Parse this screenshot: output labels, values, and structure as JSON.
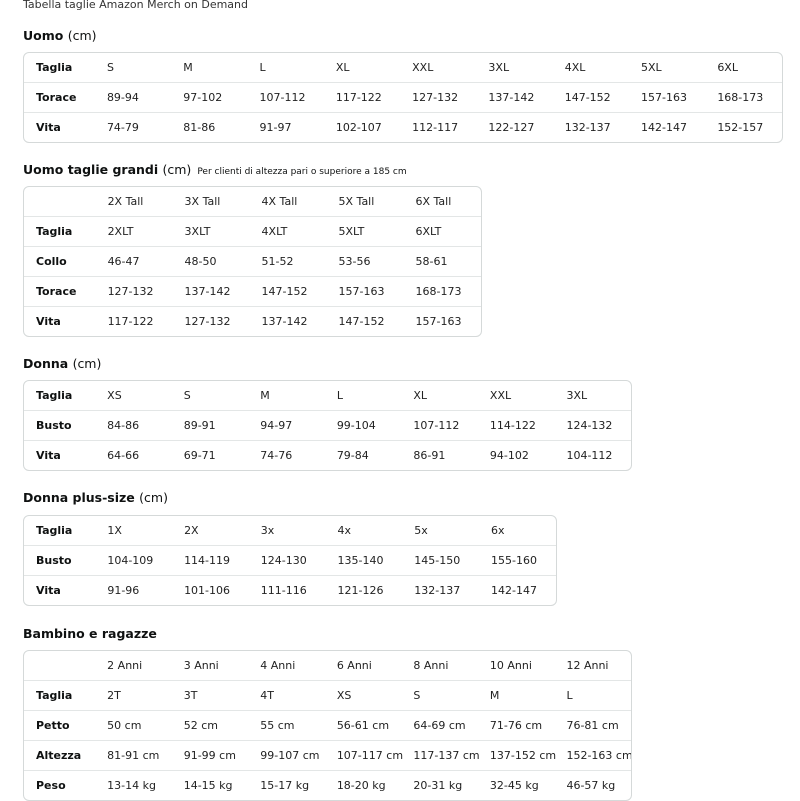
{
  "title": "Tabella taglie Amazon Merch on Demand",
  "sections": [
    {
      "heading": "Uomo",
      "unit": "(cm)",
      "note": "",
      "rows": [
        [
          "Taglia",
          "S",
          "M",
          "L",
          "XL",
          "XXL",
          "3XL",
          "4XL",
          "5XL",
          "6XL"
        ],
        [
          "Torace",
          "89-94",
          "97-102",
          "107-112",
          "117-122",
          "127-132",
          "137-142",
          "147-152",
          "157-163",
          "168-173"
        ],
        [
          "Vita",
          "74-79",
          "81-86",
          "91-97",
          "102-107",
          "112-117",
          "122-127",
          "132-137",
          "142-147",
          "152-157"
        ]
      ]
    },
    {
      "heading": "Uomo taglie grandi",
      "unit": "(cm)",
      "note": "Per clienti di altezza pari o superiore a 185 cm",
      "rows": [
        [
          "",
          "2X Tall",
          "3X Tall",
          "4X Tall",
          "5X Tall",
          "6X Tall"
        ],
        [
          "Taglia",
          "2XLT",
          "3XLT",
          "4XLT",
          "5XLT",
          "6XLT"
        ],
        [
          "Collo",
          "46-47",
          "48-50",
          "51-52",
          "53-56",
          "58-61"
        ],
        [
          "Torace",
          "127-132",
          "137-142",
          "147-152",
          "157-163",
          "168-173"
        ],
        [
          "Vita",
          "117-122",
          "127-132",
          "137-142",
          "147-152",
          "157-163"
        ]
      ]
    },
    {
      "heading": "Donna",
      "unit": "(cm)",
      "note": "",
      "rows": [
        [
          "Taglia",
          "XS",
          "S",
          "M",
          "L",
          "XL",
          "XXL",
          "3XL"
        ],
        [
          "Busto",
          "84-86",
          "89-91",
          "94-97",
          "99-104",
          "107-112",
          "114-122",
          "124-132"
        ],
        [
          "Vita",
          "64-66",
          "69-71",
          "74-76",
          "79-84",
          "86-91",
          "94-102",
          "104-112"
        ]
      ]
    },
    {
      "heading": "Donna plus-size",
      "unit": "(cm)",
      "note": "",
      "rows": [
        [
          "Taglia",
          "1X",
          "2X",
          "3x",
          "4x",
          "5x",
          "6x"
        ],
        [
          "Busto",
          "104-109",
          "114-119",
          "124-130",
          "135-140",
          "145-150",
          "155-160"
        ],
        [
          "Vita",
          "91-96",
          "101-106",
          "111-116",
          "121-126",
          "132-137",
          "142-147"
        ]
      ]
    },
    {
      "heading": "Bambino e ragazze",
      "unit": "",
      "note": "",
      "rows": [
        [
          "",
          "2 Anni",
          "3 Anni",
          "4 Anni",
          "6 Anni",
          "8 Anni",
          "10 Anni",
          "12 Anni"
        ],
        [
          "Taglia",
          "2T",
          "3T",
          "4T",
          "XS",
          "S",
          "M",
          "L"
        ],
        [
          "Petto",
          "50 cm",
          "52 cm",
          "55 cm",
          "56-61 cm",
          "64-69 cm",
          "71-76 cm",
          "76-81 cm"
        ],
        [
          "Altezza",
          "81-91 cm",
          "91-99 cm",
          "99-107 cm",
          "107-117 cm",
          "117-137 cm",
          "137-152 cm",
          "152-163 cm"
        ],
        [
          "Peso",
          "13-14 kg",
          "14-15 kg",
          "15-17 kg",
          "18-20 kg",
          "20-31 kg",
          "32-45 kg",
          "46-57 kg"
        ]
      ]
    }
  ]
}
